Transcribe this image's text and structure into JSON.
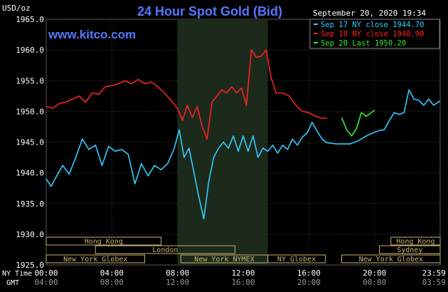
{
  "header": {
    "title": "24 Hour Spot Gold (Bid)",
    "website": "www.kitco.com",
    "unit": "USD/oz",
    "timestamp": "September 20, 2020 19:34"
  },
  "legend": [
    {
      "text": "Sep 17 NY close 1944.70",
      "color": "#33ccff"
    },
    {
      "text": "Sep 18 NY close 1948.90",
      "color": "#ff2020"
    },
    {
      "text": "Sep 20 Last 1950.20",
      "color": "#33ee33"
    }
  ],
  "axis": {
    "ny_time_label": "NY Time",
    "gmt_label": "GMT",
    "y_ticks": [
      "1965.0",
      "1960.0",
      "1955.0",
      "1950.0",
      "1945.0",
      "1940.0",
      "1935.0",
      "1930.0",
      "1925.0"
    ],
    "x_ticks_ny": [
      "00:00",
      "04:00",
      "08:00",
      "12:00",
      "16:00",
      "20:00",
      "23:59"
    ],
    "x_ticks_gmt": [
      "04:00",
      "08:00",
      "12:00",
      "16:00",
      "20:00",
      "00:00",
      "03:59"
    ]
  },
  "sessions": [
    {
      "label": "Hong Kong",
      "start": 0.0,
      "end": 7.0,
      "row": 0
    },
    {
      "label": "London",
      "start": 3.0,
      "end": 11.5,
      "row": 1
    },
    {
      "label": "New York Globex",
      "start": 0.0,
      "end": 6.0,
      "row": 2
    },
    {
      "label": "New York NYMEX",
      "start": 8.2,
      "end": 13.5,
      "row": 2
    },
    {
      "label": "NY Globex",
      "start": 13.5,
      "end": 17.0,
      "row": 2
    },
    {
      "label": "Hong Kong",
      "start": 21.0,
      "end": 24.0,
      "row": 0
    },
    {
      "label": "Sydney",
      "start": 20.3,
      "end": 24.0,
      "row": 1
    },
    {
      "label": "New York Globex",
      "start": 18.0,
      "end": 24.0,
      "row": 2
    }
  ],
  "chart_data": {
    "type": "line",
    "title": "24 Hour Spot Gold (Bid)",
    "ylabel": "USD/oz",
    "xlabel": "NY Time",
    "xlim": [
      0,
      24
    ],
    "ylim": [
      1925,
      1965
    ],
    "grid": true,
    "highlight_region": [
      8.0,
      13.5
    ],
    "series": [
      {
        "name": "Sep 17 NY close 1944.70",
        "color": "#33ccff",
        "x": [
          0.0,
          0.3,
          0.6,
          1.0,
          1.4,
          1.8,
          2.2,
          2.6,
          3.0,
          3.4,
          3.8,
          4.2,
          4.6,
          5.0,
          5.4,
          5.8,
          6.2,
          6.6,
          7.0,
          7.4,
          7.8,
          8.1,
          8.4,
          8.7,
          9.0,
          9.3,
          9.6,
          9.9,
          10.2,
          10.5,
          10.8,
          11.1,
          11.4,
          11.7,
          12.0,
          12.3,
          12.6,
          12.9,
          13.2,
          13.5,
          13.8,
          14.1,
          14.4,
          14.7,
          15.0,
          15.3,
          15.6,
          15.9,
          16.2,
          16.5,
          16.8,
          17.1,
          17.4,
          17.7,
          18.0,
          18.5,
          19.0,
          19.5,
          20.0,
          20.3,
          20.6,
          20.9,
          21.2,
          21.5,
          21.8,
          22.1,
          22.4,
          22.7,
          23.0,
          23.3,
          23.6,
          23.99
        ],
        "values": [
          1939.0,
          1937.8,
          1939.3,
          1941.2,
          1939.8,
          1942.5,
          1945.5,
          1943.8,
          1944.5,
          1941.2,
          1944.3,
          1943.5,
          1943.8,
          1943.0,
          1938.2,
          1941.5,
          1939.5,
          1941.2,
          1940.5,
          1941.5,
          1944.0,
          1947.0,
          1942.5,
          1944.0,
          1940.0,
          1936.0,
          1932.5,
          1938.5,
          1942.5,
          1944.0,
          1945.0,
          1944.0,
          1946.0,
          1943.5,
          1946.0,
          1943.5,
          1946.0,
          1942.5,
          1944.0,
          1943.5,
          1944.5,
          1943.2,
          1944.5,
          1943.8,
          1945.5,
          1944.5,
          1945.8,
          1946.5,
          1948.2,
          1946.8,
          1945.5,
          1944.9,
          1944.8,
          1944.7,
          1944.7,
          1944.7,
          1945.2,
          1946.0,
          1946.6,
          1946.9,
          1947.0,
          1948.5,
          1949.8,
          1949.5,
          1949.8,
          1953.5,
          1952.0,
          1951.8,
          1951.0,
          1952.0,
          1951.0,
          1951.7
        ]
      },
      {
        "name": "Sep 18 NY close 1948.90",
        "color": "#ff2020",
        "x": [
          0.0,
          0.4,
          0.8,
          1.2,
          1.6,
          2.0,
          2.4,
          2.8,
          3.2,
          3.6,
          4.0,
          4.4,
          4.8,
          5.2,
          5.6,
          6.0,
          6.4,
          6.8,
          7.2,
          7.6,
          8.0,
          8.3,
          8.6,
          8.9,
          9.2,
          9.5,
          9.8,
          10.1,
          10.4,
          10.7,
          11.0,
          11.3,
          11.6,
          11.9,
          12.2,
          12.5,
          12.8,
          13.1,
          13.4,
          13.7,
          14.0,
          14.4,
          14.8,
          15.2,
          15.6,
          16.0,
          16.4,
          16.8,
          17.1
        ],
        "values": [
          1950.8,
          1950.5,
          1951.3,
          1951.5,
          1952.0,
          1952.5,
          1951.5,
          1953.0,
          1952.8,
          1954.0,
          1954.2,
          1954.5,
          1955.0,
          1954.5,
          1955.2,
          1954.5,
          1954.8,
          1954.0,
          1953.0,
          1951.8,
          1950.5,
          1948.5,
          1951.0,
          1949.0,
          1950.8,
          1947.5,
          1945.5,
          1951.5,
          1952.5,
          1953.5,
          1953.0,
          1954.0,
          1953.0,
          1953.8,
          1951.0,
          1960.0,
          1958.8,
          1959.0,
          1960.0,
          1955.5,
          1953.0,
          1953.0,
          1952.5,
          1951.0,
          1950.0,
          1949.8,
          1949.2,
          1948.9,
          1948.9
        ]
      },
      {
        "name": "Sep 20 Last 1950.20",
        "color": "#33ee33",
        "x": [
          18.0,
          18.3,
          18.6,
          18.9,
          19.2,
          19.5,
          19.8,
          20.0
        ],
        "values": [
          1949.0,
          1947.0,
          1946.0,
          1947.2,
          1949.8,
          1949.2,
          1949.8,
          1950.2
        ]
      }
    ]
  }
}
